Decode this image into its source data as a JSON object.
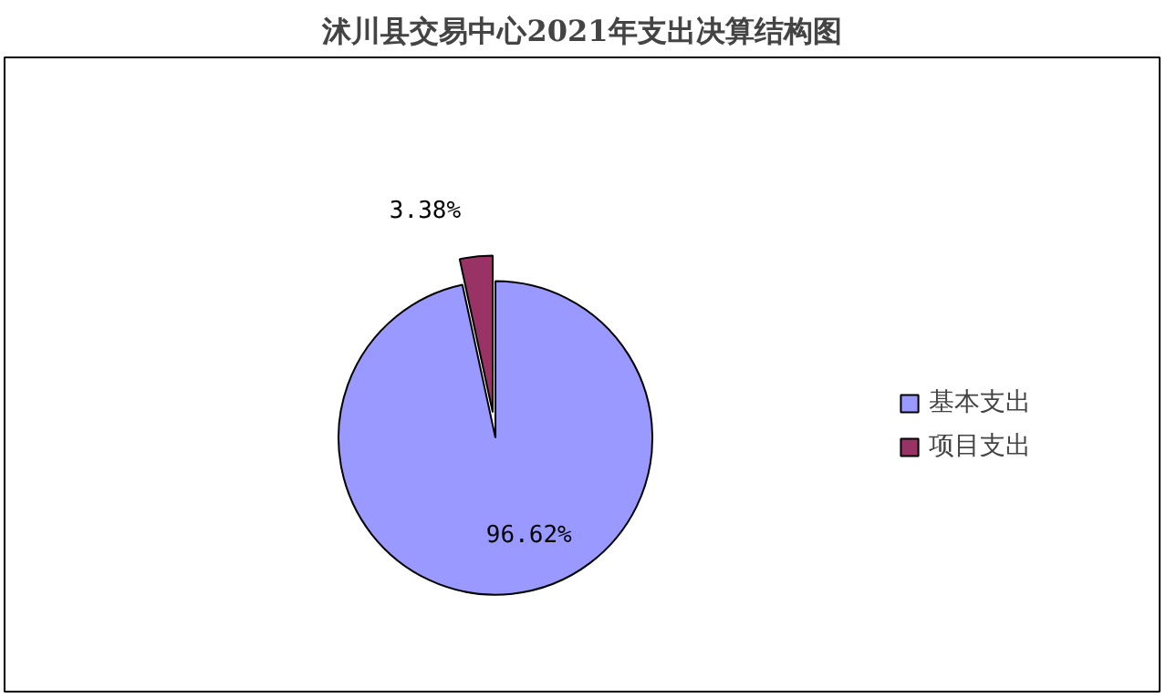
{
  "chart_data": {
    "type": "pie",
    "title": "沭川县交易中心2021年支出决算结构图",
    "categories": [
      "基本支出",
      "项目支出"
    ],
    "values": [
      96.62,
      3.38
    ],
    "colors": [
      "#9999ff",
      "#993366"
    ],
    "value_labels": [
      "96.62%",
      "3.38%"
    ],
    "legend": "right"
  }
}
